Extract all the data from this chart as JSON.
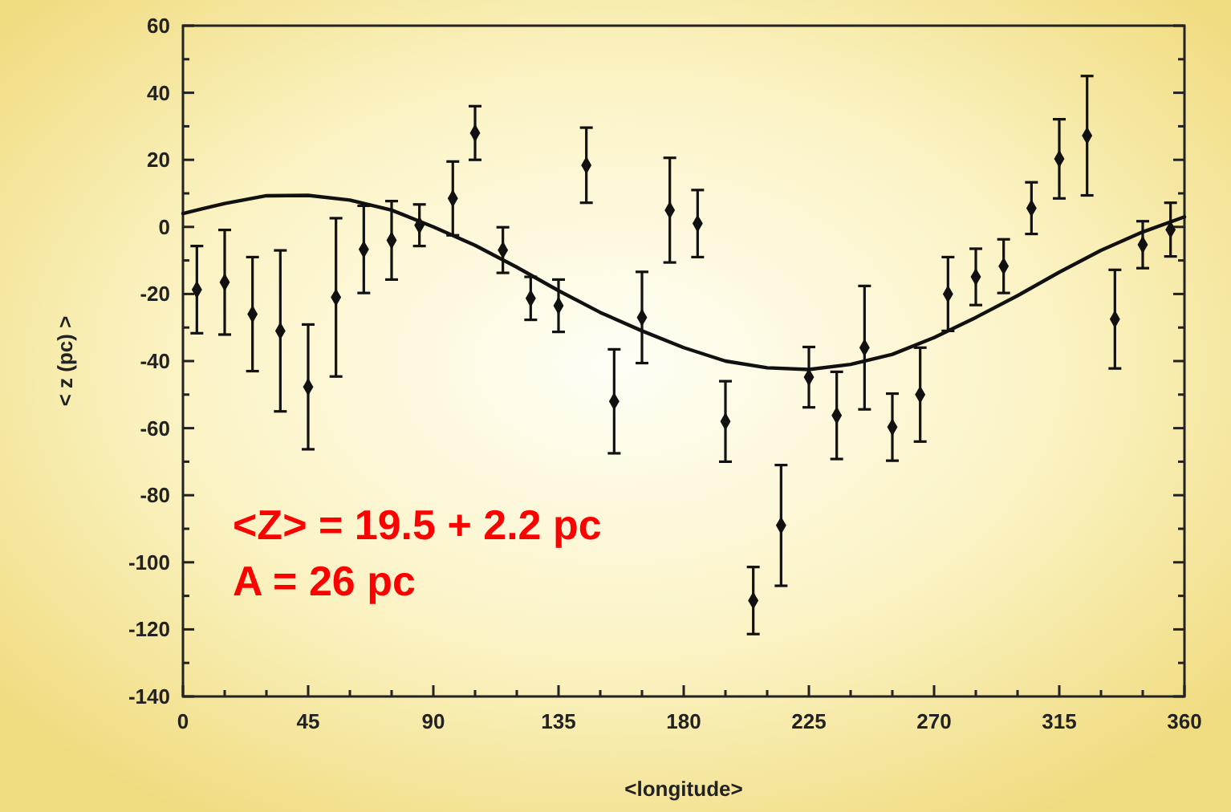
{
  "chart_data": {
    "type": "scatter",
    "xlabel": "<longitude>",
    "ylabel": "< z (pc) >",
    "xlim": [
      0,
      360
    ],
    "xticks": [
      0,
      {
        "value": 15,
        "label": null
      },
      {
        "value": 30,
        "label": null
      },
      45,
      {
        "value": 60,
        "label": null
      },
      {
        "value": 75,
        "label": null
      },
      90,
      {
        "value": 105,
        "label": null
      },
      {
        "value": 120,
        "label": null
      },
      135,
      {
        "value": 150,
        "label": null
      },
      {
        "value": 165,
        "label": null
      },
      180,
      {
        "value": 195,
        "label": null
      },
      {
        "value": 210,
        "label": null
      },
      225,
      {
        "value": 240,
        "label": null
      },
      {
        "value": 255,
        "label": null
      },
      270,
      {
        "value": 285,
        "label": null
      },
      {
        "value": 300,
        "label": null
      },
      315,
      {
        "value": 330,
        "label": null
      },
      {
        "value": 345,
        "label": null
      },
      360
    ],
    "ylim": [
      -140,
      60
    ],
    "yticks": [
      -140,
      {
        "value": -130,
        "label": null
      },
      -120,
      {
        "value": -110,
        "label": null
      },
      -100,
      {
        "value": -90,
        "label": null
      },
      -80,
      {
        "value": -70,
        "label": null
      },
      -60,
      {
        "value": -50,
        "label": null
      },
      -40,
      {
        "value": -30,
        "label": null
      },
      -20,
      {
        "value": -10,
        "label": null
      },
      0,
      {
        "value": 10,
        "label": null
      },
      20,
      {
        "value": 30,
        "label": null
      },
      40,
      {
        "value": 50,
        "label": null
      },
      60
    ],
    "marker": "diamond",
    "annotations": [
      "<Z> = 19.5 + 2.2 pc",
      "A = 26 pc"
    ],
    "series": [
      {
        "color": "#111111",
        "x": [
          5,
          15,
          25,
          35,
          45,
          55,
          65,
          75,
          85,
          97,
          105,
          115,
          125,
          135,
          145,
          155,
          165,
          175,
          185,
          195,
          205,
          215,
          225,
          235,
          245,
          255,
          265,
          275,
          285,
          295,
          305,
          315,
          325,
          335,
          345,
          355
        ],
        "values": [
          -18.7,
          -16.5,
          -26,
          -31,
          -47.7,
          -21,
          -6.7,
          -4,
          0.5,
          8.5,
          28,
          -6.9,
          -21.3,
          -23.5,
          18.4,
          -52,
          -27,
          5,
          1,
          -58,
          -111.4,
          -89,
          -44.8,
          -56.2,
          -36,
          -59.7,
          -50,
          -20,
          -14.9,
          -11.7,
          5.6,
          20.3,
          27.2,
          -27.5,
          -5.3,
          -0.8
        ],
        "errors": [
          13,
          15.6,
          17,
          24,
          18.6,
          23.6,
          13,
          11.7,
          6.2,
          11,
          8,
          6.8,
          6.4,
          7.8,
          11.2,
          15.5,
          13.6,
          15.6,
          10,
          12,
          10,
          18,
          9,
          13,
          18.4,
          10,
          14,
          11,
          8.4,
          8,
          7.7,
          11.8,
          17.8,
          14.7,
          7,
          8
        ]
      },
      {
        "type": "line",
        "color": "#111111",
        "marker": "none",
        "x": [
          0,
          15,
          30,
          45,
          60,
          75,
          90,
          105,
          120,
          135,
          150,
          165,
          180,
          195,
          210,
          225,
          240,
          255,
          270,
          285,
          300,
          315,
          330,
          345,
          360
        ],
        "values": [
          4,
          7,
          9.3,
          9.4,
          8,
          5,
          0,
          -5.5,
          -12,
          -19,
          -25.5,
          -31,
          -36,
          -40,
          -42,
          -42.5,
          -41,
          -38,
          -33,
          -27,
          -20.5,
          -13.5,
          -7,
          -1.5,
          3
        ]
      }
    ]
  }
}
